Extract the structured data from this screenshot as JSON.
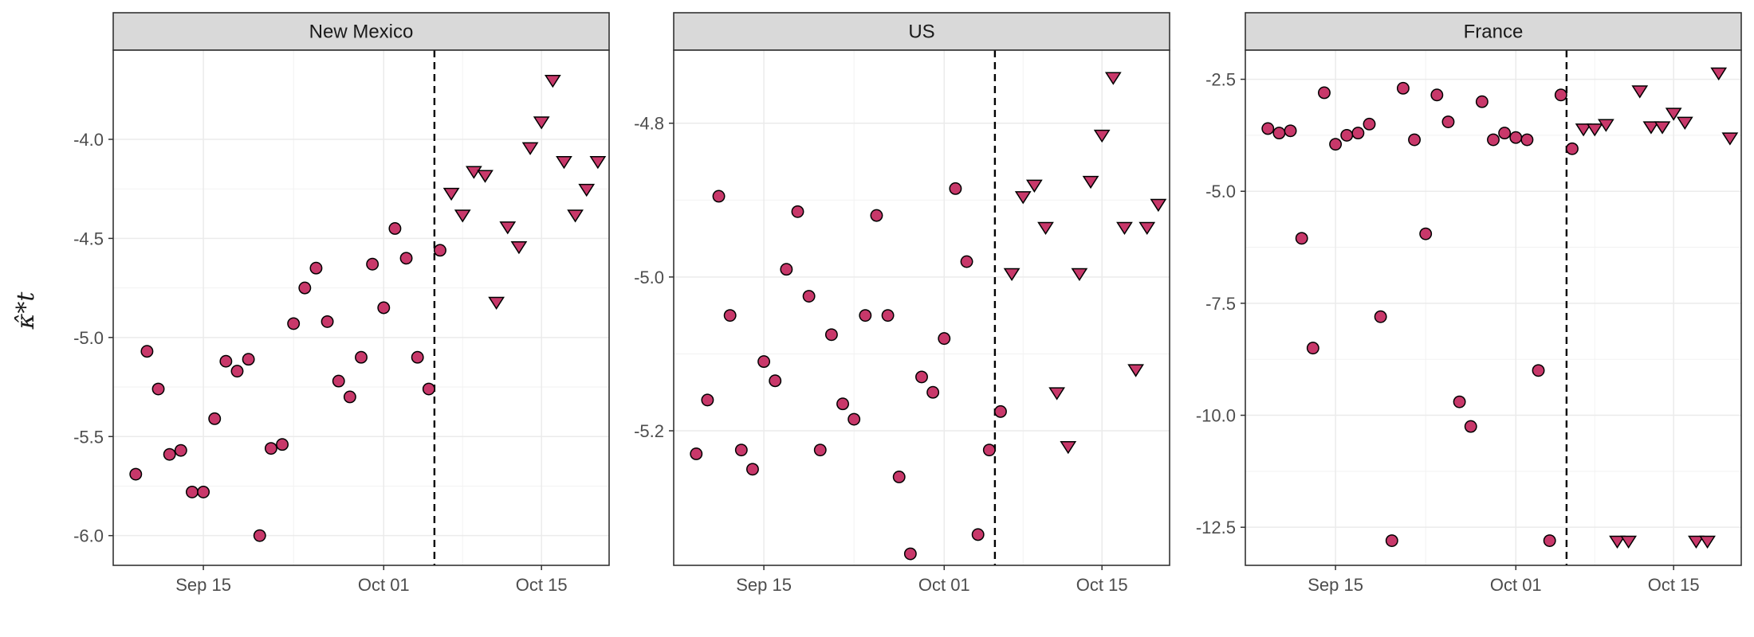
{
  "chart_data": {
    "type": "scatter",
    "ylabel": "κ̂*t",
    "x_tick_labels": [
      "Sep 15",
      "Oct 01",
      "Oct 15"
    ],
    "x_ticks": [
      "2020-09-15",
      "2020-10-01",
      "2020-10-15"
    ],
    "xlim": [
      "2020-09-07",
      "2020-10-21"
    ],
    "vline_date": "2020-10-06",
    "legend": "none",
    "grid": true,
    "marker_color": "#C8386A",
    "panels": [
      {
        "name": "New Mexico",
        "ylim": [
          -6.15,
          -3.55
        ],
        "y_ticks": [
          -6.0,
          -5.5,
          -5.0,
          -4.5,
          -4.0
        ],
        "y_tick_labels": [
          "-6.0",
          "-5.5",
          "-5.0",
          "-4.5",
          "-4.0"
        ],
        "circles": {
          "x": [
            "2020-09-09",
            "2020-09-10",
            "2020-09-11",
            "2020-09-12",
            "2020-09-13",
            "2020-09-14",
            "2020-09-15",
            "2020-09-16",
            "2020-09-17",
            "2020-09-18",
            "2020-09-19",
            "2020-09-20",
            "2020-09-21",
            "2020-09-22",
            "2020-09-23",
            "2020-09-24",
            "2020-09-25",
            "2020-09-26",
            "2020-09-27",
            "2020-09-28",
            "2020-09-29",
            "2020-09-30",
            "2020-10-01",
            "2020-10-02",
            "2020-10-03",
            "2020-10-04",
            "2020-10-05",
            "2020-10-06"
          ],
          "y": [
            -5.69,
            -5.07,
            -5.26,
            -5.59,
            -5.57,
            -5.78,
            -5.78,
            -5.41,
            -5.12,
            -5.17,
            -5.11,
            -6.0,
            -5.56,
            -5.54,
            -4.93,
            -4.75,
            -4.65,
            -4.92,
            -5.22,
            -5.3,
            -5.1,
            -4.63,
            -4.85,
            -4.45,
            -4.6,
            -5.1,
            -5.26,
            -4.56
          ]
        },
        "triangles": {
          "x": [
            "2020-10-07",
            "2020-10-08",
            "2020-10-09",
            "2020-10-10",
            "2020-10-11",
            "2020-10-12",
            "2020-10-13",
            "2020-10-14",
            "2020-10-15",
            "2020-10-16",
            "2020-10-17",
            "2020-10-18",
            "2020-10-19",
            "2020-10-20"
          ],
          "y": [
            -4.27,
            -4.38,
            -4.16,
            -4.18,
            -4.82,
            -4.44,
            -4.54,
            -4.04,
            -3.91,
            -3.7,
            -4.11,
            -4.38,
            -4.25,
            -4.11
          ]
        }
      },
      {
        "name": "US",
        "ylim": [
          -5.375,
          -4.705
        ],
        "y_ticks": [
          -5.2,
          -5.0,
          -4.8
        ],
        "y_tick_labels": [
          "-5.2",
          "-5.0",
          "-4.8"
        ],
        "circles": {
          "x": [
            "2020-09-09",
            "2020-09-10",
            "2020-09-11",
            "2020-09-12",
            "2020-09-13",
            "2020-09-14",
            "2020-09-15",
            "2020-09-16",
            "2020-09-17",
            "2020-09-18",
            "2020-09-19",
            "2020-09-20",
            "2020-09-21",
            "2020-09-22",
            "2020-09-23",
            "2020-09-24",
            "2020-09-25",
            "2020-09-26",
            "2020-09-27",
            "2020-09-28",
            "2020-09-29",
            "2020-09-30",
            "2020-10-01",
            "2020-10-02",
            "2020-10-03",
            "2020-10-04",
            "2020-10-05",
            "2020-10-06"
          ],
          "y": [
            -5.23,
            -5.16,
            -4.895,
            -5.05,
            -5.225,
            -5.25,
            -5.11,
            -5.135,
            -4.99,
            -4.915,
            -5.025,
            -5.225,
            -5.075,
            -5.165,
            -5.185,
            -5.05,
            -4.92,
            -5.05,
            -5.26,
            -5.36,
            -5.13,
            -5.15,
            -5.08,
            -4.885,
            -4.98,
            -5.335,
            -5.225,
            -5.175
          ]
        },
        "triangles": {
          "x": [
            "2020-10-07",
            "2020-10-08",
            "2020-10-09",
            "2020-10-10",
            "2020-10-11",
            "2020-10-12",
            "2020-10-13",
            "2020-10-14",
            "2020-10-15",
            "2020-10-16",
            "2020-10-17",
            "2020-10-18",
            "2020-10-19",
            "2020-10-20"
          ],
          "y": [
            -4.995,
            -4.895,
            -4.88,
            -4.935,
            -5.15,
            -5.22,
            -4.995,
            -4.875,
            -4.815,
            -4.74,
            -4.935,
            -5.12,
            -4.935,
            -4.905
          ]
        }
      },
      {
        "name": "France",
        "ylim": [
          -13.35,
          -1.85
        ],
        "y_ticks": [
          -12.5,
          -10.0,
          -7.5,
          -5.0,
          -2.5
        ],
        "y_tick_labels": [
          "-12.5",
          "-10.0",
          "-7.5",
          "-5.0",
          "-2.5"
        ],
        "circles": {
          "x": [
            "2020-09-09",
            "2020-09-10",
            "2020-09-11",
            "2020-09-12",
            "2020-09-13",
            "2020-09-14",
            "2020-09-15",
            "2020-09-16",
            "2020-09-17",
            "2020-09-18",
            "2020-09-19",
            "2020-09-20",
            "2020-09-21",
            "2020-09-22",
            "2020-09-23",
            "2020-09-24",
            "2020-09-25",
            "2020-09-26",
            "2020-09-27",
            "2020-09-28",
            "2020-09-29",
            "2020-09-30",
            "2020-10-01",
            "2020-10-02",
            "2020-10-03",
            "2020-10-04",
            "2020-10-05",
            "2020-10-06"
          ],
          "y": [
            -3.6,
            -3.7,
            -3.65,
            -6.05,
            -8.5,
            -2.8,
            -3.95,
            -3.75,
            -3.7,
            -3.5,
            -7.8,
            -12.8,
            -2.7,
            -3.85,
            -5.95,
            -2.85,
            -3.45,
            -9.7,
            -10.25,
            -3.0,
            -3.85,
            -3.7,
            -3.8,
            -3.85,
            -9.0,
            -12.8,
            -2.85,
            -4.05
          ]
        },
        "triangles": {
          "x": [
            "2020-10-07",
            "2020-10-08",
            "2020-10-09",
            "2020-10-10",
            "2020-10-11",
            "2020-10-12",
            "2020-10-13",
            "2020-10-14",
            "2020-10-15",
            "2020-10-16",
            "2020-10-17",
            "2020-10-18",
            "2020-10-19",
            "2020-10-20"
          ],
          "y": [
            -3.6,
            -3.6,
            -3.5,
            -12.8,
            -12.8,
            -2.75,
            -3.55,
            -3.55,
            -3.25,
            -3.45,
            -12.8,
            -12.8,
            -2.35,
            -3.8
          ]
        }
      }
    ]
  }
}
